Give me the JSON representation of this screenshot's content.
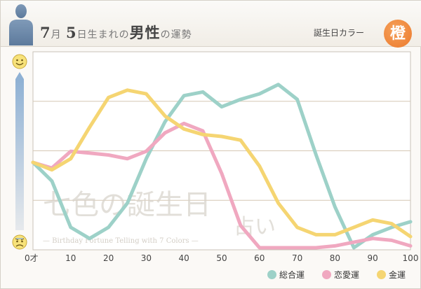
{
  "header": {
    "title_month": "7",
    "title_month_unit": "月",
    "title_day": "5",
    "title_day_unit": "日生まれの",
    "title_gender": "男性",
    "title_suffix": "の運勢",
    "birth_color_label": "誕生日カラー",
    "birth_color_kanji": "橙",
    "birth_color_hex": "#ee7f33"
  },
  "gauge": {
    "top_icon": "smiley-face-icon",
    "bottom_icon": "worried-face-icon"
  },
  "watermark": {
    "line1": "七色の誕生日",
    "line2": "占い",
    "line3": "— Birthday Fortune Telling with 7 Colors —"
  },
  "chart_data": {
    "type": "line",
    "x_tick_labels": [
      "0才",
      "10",
      "20",
      "30",
      "40",
      "50",
      "60",
      "70",
      "80",
      "90",
      "100"
    ],
    "x_ticks": [
      0,
      10,
      20,
      30,
      40,
      50,
      60,
      70,
      80,
      90,
      100
    ],
    "xlim": [
      0,
      100
    ],
    "ylim": [
      0,
      100
    ],
    "grid": true,
    "legend_position": "bottom-right",
    "series": [
      {
        "name": "総合運",
        "color": "#9dd1c8",
        "x": [
          0,
          5,
          10,
          15,
          20,
          25,
          30,
          35,
          40,
          45,
          50,
          55,
          60,
          65,
          70,
          75,
          80,
          85,
          90,
          95,
          100
        ],
        "y": [
          46,
          36,
          11,
          5,
          11,
          24,
          48,
          68,
          82,
          84,
          76,
          80,
          83,
          88,
          80,
          50,
          22,
          0,
          7,
          11,
          14
        ]
      },
      {
        "name": "恋愛運",
        "color": "#f0a8c0",
        "x": [
          0,
          5,
          10,
          15,
          20,
          25,
          30,
          35,
          40,
          45,
          50,
          55,
          60,
          65,
          70,
          75,
          80,
          85,
          90,
          95,
          100
        ],
        "y": [
          46,
          43,
          52,
          51,
          50,
          48,
          52,
          62,
          67,
          63,
          40,
          12,
          0,
          0,
          0,
          0,
          1,
          3,
          5,
          4,
          1
        ]
      },
      {
        "name": "金運",
        "color": "#f5d572",
        "x": [
          0,
          5,
          10,
          15,
          20,
          25,
          30,
          35,
          40,
          45,
          50,
          55,
          60,
          65,
          70,
          75,
          80,
          85,
          90,
          95,
          100
        ],
        "y": [
          46,
          42,
          48,
          65,
          81,
          85,
          83,
          71,
          64,
          61,
          60,
          58,
          44,
          24,
          11,
          7,
          7,
          11,
          15,
          13,
          6
        ]
      }
    ]
  }
}
